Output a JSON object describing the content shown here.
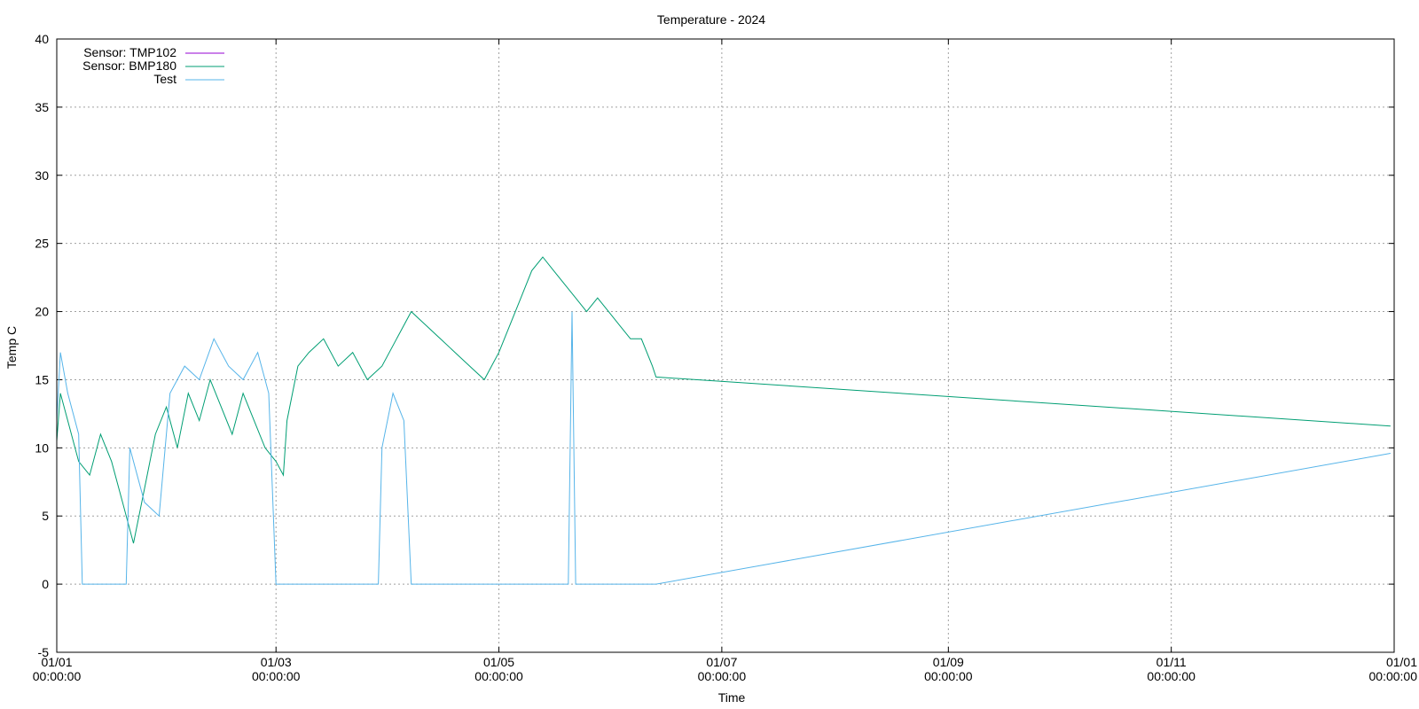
{
  "chart_data": {
    "type": "line",
    "title": "Temperature - 2024",
    "xlabel": "Time",
    "ylabel": "Temp C",
    "x_axis": "date",
    "xlim": [
      "2024-01-01",
      "2025-01-01"
    ],
    "ylim": [
      -5,
      40
    ],
    "grid": true,
    "legend_position": "top-left",
    "x_ticks": [
      {
        "date": "2024-01-01",
        "label": "01/01",
        "time": "00:00:00"
      },
      {
        "date": "2024-03-01",
        "label": "01/03",
        "time": "00:00:00"
      },
      {
        "date": "2024-05-01",
        "label": "01/05",
        "time": "00:00:00"
      },
      {
        "date": "2024-07-01",
        "label": "01/07",
        "time": "00:00:00"
      },
      {
        "date": "2024-09-01",
        "label": "01/09",
        "time": "00:00:00"
      },
      {
        "date": "2024-11-01",
        "label": "01/11",
        "time": "00:00:00"
      },
      {
        "date": "2025-01-01",
        "label": "01/01",
        "time": "00:00:00"
      }
    ],
    "y_ticks": [
      -5,
      0,
      5,
      10,
      15,
      20,
      25,
      30,
      35,
      40
    ],
    "series": [
      {
        "name": "Sensor: TMP102",
        "color": "#9400d3",
        "points": []
      },
      {
        "name": "Sensor: BMP180",
        "color": "#009e73",
        "points": [
          [
            "2024-01-01",
            10.5
          ],
          [
            "2024-01-02",
            14
          ],
          [
            "2024-01-04",
            12
          ],
          [
            "2024-01-07",
            9
          ],
          [
            "2024-01-10",
            8
          ],
          [
            "2024-01-13",
            11
          ],
          [
            "2024-01-16",
            9
          ],
          [
            "2024-01-19",
            6
          ],
          [
            "2024-01-22",
            3
          ],
          [
            "2024-01-25",
            7
          ],
          [
            "2024-01-28",
            11
          ],
          [
            "2024-01-31",
            13
          ],
          [
            "2024-02-03",
            10
          ],
          [
            "2024-02-06",
            14
          ],
          [
            "2024-02-09",
            12
          ],
          [
            "2024-02-12",
            15
          ],
          [
            "2024-02-15",
            13
          ],
          [
            "2024-02-18",
            11
          ],
          [
            "2024-02-21",
            14
          ],
          [
            "2024-02-24",
            12
          ],
          [
            "2024-02-27",
            10
          ],
          [
            "2024-03-01",
            9
          ],
          [
            "2024-03-03",
            8
          ],
          [
            "2024-03-04",
            12
          ],
          [
            "2024-03-07",
            16
          ],
          [
            "2024-03-10",
            17
          ],
          [
            "2024-03-14",
            18
          ],
          [
            "2024-03-18",
            16
          ],
          [
            "2024-03-22",
            17
          ],
          [
            "2024-03-26",
            15
          ],
          [
            "2024-03-30",
            16
          ],
          [
            "2024-04-03",
            18
          ],
          [
            "2024-04-07",
            20
          ],
          [
            "2024-04-11",
            19
          ],
          [
            "2024-04-15",
            18
          ],
          [
            "2024-04-19",
            17
          ],
          [
            "2024-04-23",
            16
          ],
          [
            "2024-04-27",
            15
          ],
          [
            "2024-05-01",
            17
          ],
          [
            "2024-05-04",
            19
          ],
          [
            "2024-05-07",
            21
          ],
          [
            "2024-05-10",
            23
          ],
          [
            "2024-05-13",
            24
          ],
          [
            "2024-05-16",
            23
          ],
          [
            "2024-05-19",
            22
          ],
          [
            "2024-05-22",
            21
          ],
          [
            "2024-05-25",
            20
          ],
          [
            "2024-05-28",
            21
          ],
          [
            "2024-05-31",
            20
          ],
          [
            "2024-06-03",
            19
          ],
          [
            "2024-06-06",
            18
          ],
          [
            "2024-06-09",
            18
          ],
          [
            "2024-06-12",
            16
          ],
          [
            "2024-06-13",
            15.2
          ],
          [
            "2024-12-31",
            11.6
          ]
        ]
      },
      {
        "name": "Test",
        "color": "#56b4e9",
        "points": [
          [
            "2024-01-01",
            12
          ],
          [
            "2024-01-02",
            17
          ],
          [
            "2024-01-04",
            14
          ],
          [
            "2024-01-07",
            11
          ],
          [
            "2024-01-08",
            0
          ],
          [
            "2024-01-20",
            0
          ],
          [
            "2024-01-21",
            10
          ],
          [
            "2024-01-25",
            6
          ],
          [
            "2024-01-29",
            5
          ],
          [
            "2024-02-01",
            14
          ],
          [
            "2024-02-05",
            16
          ],
          [
            "2024-02-09",
            15
          ],
          [
            "2024-02-13",
            18
          ],
          [
            "2024-02-17",
            16
          ],
          [
            "2024-02-21",
            15
          ],
          [
            "2024-02-25",
            17
          ],
          [
            "2024-02-28",
            14
          ],
          [
            "2024-03-01",
            0
          ],
          [
            "2024-03-29",
            0
          ],
          [
            "2024-03-30",
            10
          ],
          [
            "2024-04-02",
            14
          ],
          [
            "2024-04-05",
            12
          ],
          [
            "2024-04-07",
            0
          ],
          [
            "2024-05-20",
            0
          ],
          [
            "2024-05-21",
            20
          ],
          [
            "2024-05-22",
            0
          ],
          [
            "2024-06-13",
            0
          ],
          [
            "2024-12-31",
            9.6
          ]
        ]
      }
    ]
  }
}
